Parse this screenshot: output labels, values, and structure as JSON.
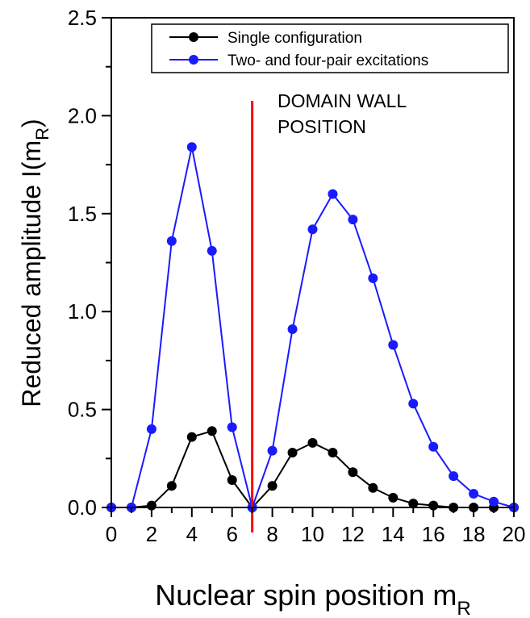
{
  "chart_data": {
    "type": "line",
    "xlabel": "Nuclear spin position m",
    "xlabel_sub": "R",
    "ylabel": "Reduced amplitude I(m",
    "ylabel_sub": "R",
    "ylabel_close": ")",
    "xlim": [
      0,
      20
    ],
    "ylim": [
      0,
      2.5
    ],
    "x_ticks": [
      "0",
      "2",
      "4",
      "6",
      "8",
      "10",
      "12",
      "14",
      "16",
      "18",
      "20"
    ],
    "y_ticks": [
      "0.0",
      "0.5",
      "1.0",
      "1.5",
      "2.0",
      "2.5"
    ],
    "grid": false,
    "legend_position": "top-right",
    "x": [
      0,
      1,
      2,
      3,
      4,
      5,
      6,
      7,
      8,
      9,
      10,
      11,
      12,
      13,
      14,
      15,
      16,
      17,
      18,
      19,
      20
    ],
    "series": [
      {
        "name": "Single configuration",
        "color": "#000000",
        "values": [
          0.0,
          0.0,
          0.01,
          0.11,
          0.36,
          0.39,
          0.14,
          0.0,
          0.11,
          0.28,
          0.33,
          0.28,
          0.18,
          0.1,
          0.05,
          0.02,
          0.01,
          0.0,
          0.0,
          0.0,
          0.0
        ]
      },
      {
        "name": "Two- and four-pair excitations",
        "color": "#1a1aff",
        "values": [
          0.0,
          0.0,
          0.4,
          1.36,
          1.84,
          1.31,
          0.41,
          0.0,
          0.29,
          0.91,
          1.42,
          1.6,
          1.47,
          1.17,
          0.83,
          0.53,
          0.31,
          0.16,
          0.07,
          0.03,
          0.0
        ]
      }
    ],
    "annotation": {
      "x": 7,
      "color": "#ff0000",
      "line1": "DOMAIN WALL",
      "line2": "POSITION"
    }
  }
}
